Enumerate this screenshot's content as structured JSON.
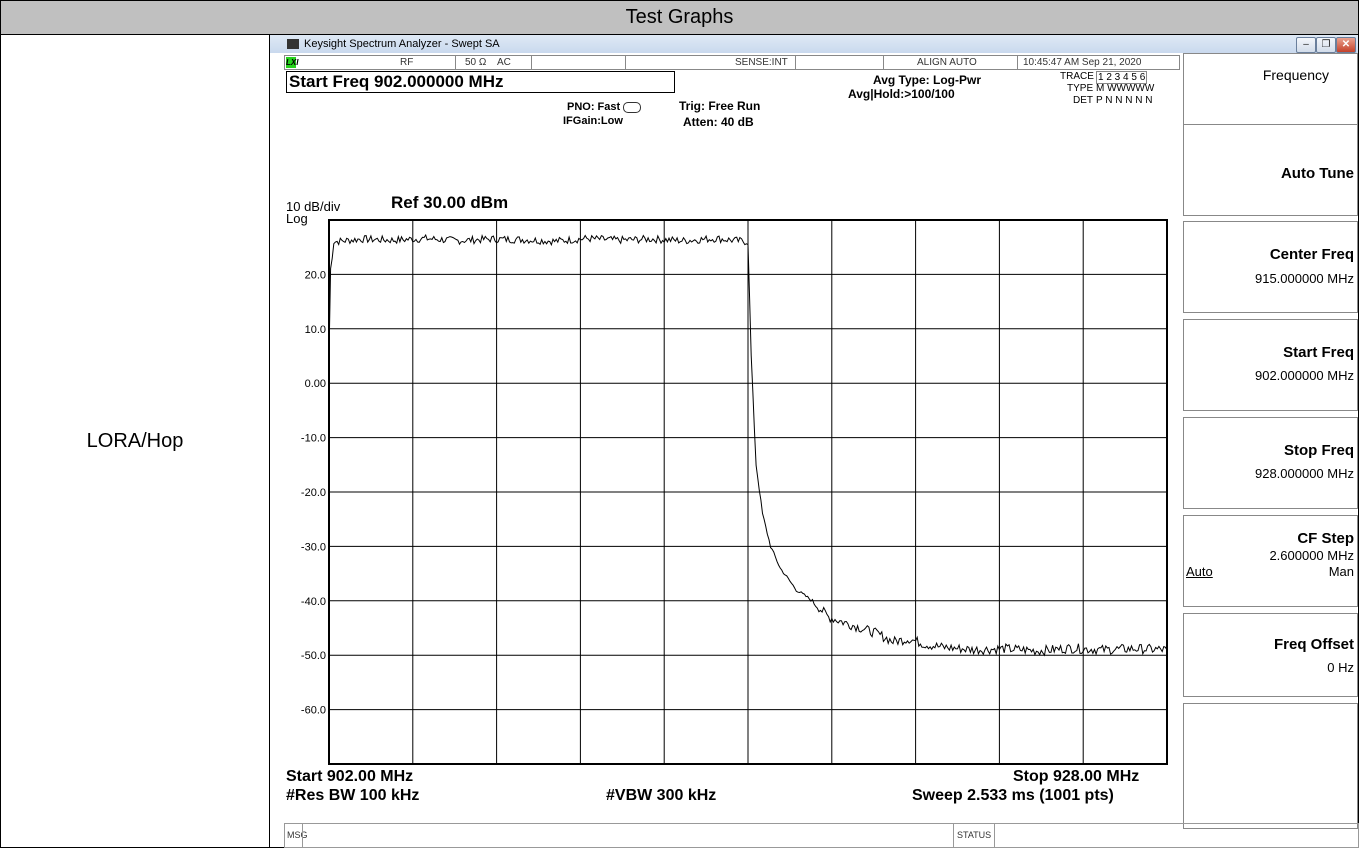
{
  "page": {
    "header": "Test Graphs",
    "row_label": "LORA/Hop"
  },
  "window": {
    "title": "Keysight Spectrum Analyzer - Swept SA",
    "buttons": [
      "–",
      "❐",
      "✕"
    ]
  },
  "status_strip": {
    "lxi": "LXI",
    "rf": "RF",
    "impedance": "50 Ω",
    "coupling": "AC",
    "sense": "SENSE:INT",
    "align": "ALIGN AUTO",
    "datetime": "10:45:47 AM Sep 21, 2020"
  },
  "measurement": {
    "active_function": "Start Freq 902.000000 MHz",
    "pno": "PNO: Fast",
    "ifgain": "IFGain:Low",
    "trig": "Trig: Free Run",
    "atten": "Atten: 40 dB",
    "avg_type": "Avg Type: Log-Pwr",
    "avg_hold": "Avg|Hold:>100/100",
    "trace_label": "TRACE",
    "trace_values": "1 2 3 4 5 6",
    "type_label": "TYPE",
    "type_values": "M WWWWW",
    "det_label": "DET",
    "det_values": "P N N N N N"
  },
  "plot": {
    "scale": "10 dB/div",
    "scale_type": "Log",
    "ref": "Ref 30.00 dBm",
    "start": "Start 902.00 MHz",
    "stop": "Stop 928.00 MHz",
    "rbw": "#Res BW 100 kHz",
    "vbw": "#VBW 300 kHz",
    "sweep": "Sweep  2.533 ms (1001 pts)"
  },
  "chart_data": {
    "type": "line",
    "title": "",
    "xlabel": "",
    "ylabel": "",
    "xlim": [
      902.0,
      928.0
    ],
    "ylim": [
      -70,
      30
    ],
    "y_tick_labels": [
      "20.0",
      "10.0",
      "0.00",
      "-10.0",
      "-20.0",
      "-30.0",
      "-40.0",
      "-50.0",
      "-60.0"
    ],
    "y_tick_values": [
      20,
      10,
      0,
      -10,
      -20,
      -30,
      -40,
      -50,
      -60
    ],
    "grid": true,
    "series": [
      {
        "x": [
          902.0,
          902.05,
          902.15,
          903.0,
          904.0,
          905.0,
          906.0,
          907.0,
          908.0,
          909.0,
          910.0,
          911.0,
          912.0,
          913.0,
          914.0,
          915.0,
          915.1,
          915.25,
          915.45,
          915.7,
          916.0,
          916.5,
          917.0,
          917.5,
          918.0,
          918.5,
          919.0,
          919.5,
          920.0,
          920.5,
          921.0,
          922.0,
          923.0,
          924.0,
          925.0,
          926.0,
          927.0,
          928.0
        ],
        "y": [
          5.0,
          21.0,
          26.0,
          26.5,
          26.3,
          26.6,
          26.2,
          26.5,
          26.4,
          26.1,
          26.6,
          26.3,
          26.5,
          26.2,
          26.6,
          26.0,
          5.0,
          -15.0,
          -24.0,
          -30.0,
          -34.0,
          -38.0,
          -40.0,
          -43.0,
          -44.0,
          -45.0,
          -46.0,
          -47.5,
          -47.0,
          -48.0,
          -48.5,
          -49.0,
          -48.8,
          -49.2,
          -48.7,
          -49.0,
          -48.8,
          -49.0
        ]
      }
    ]
  },
  "softkeys": {
    "menu_title": "Frequency",
    "auto_tune": "Auto Tune",
    "center_freq": "Center Freq",
    "center_freq_value": "915.000000 MHz",
    "start_freq": "Start Freq",
    "start_freq_value": "902.000000 MHz",
    "stop_freq": "Stop Freq",
    "stop_freq_value": "928.000000 MHz",
    "cf_step": "CF Step",
    "cf_step_value": "2.600000 MHz",
    "cf_step_auto": "Auto",
    "cf_step_man": "Man",
    "freq_offset": "Freq Offset",
    "freq_offset_value": "0 Hz"
  },
  "bottom": {
    "msg": "MSG",
    "status": "STATUS"
  }
}
